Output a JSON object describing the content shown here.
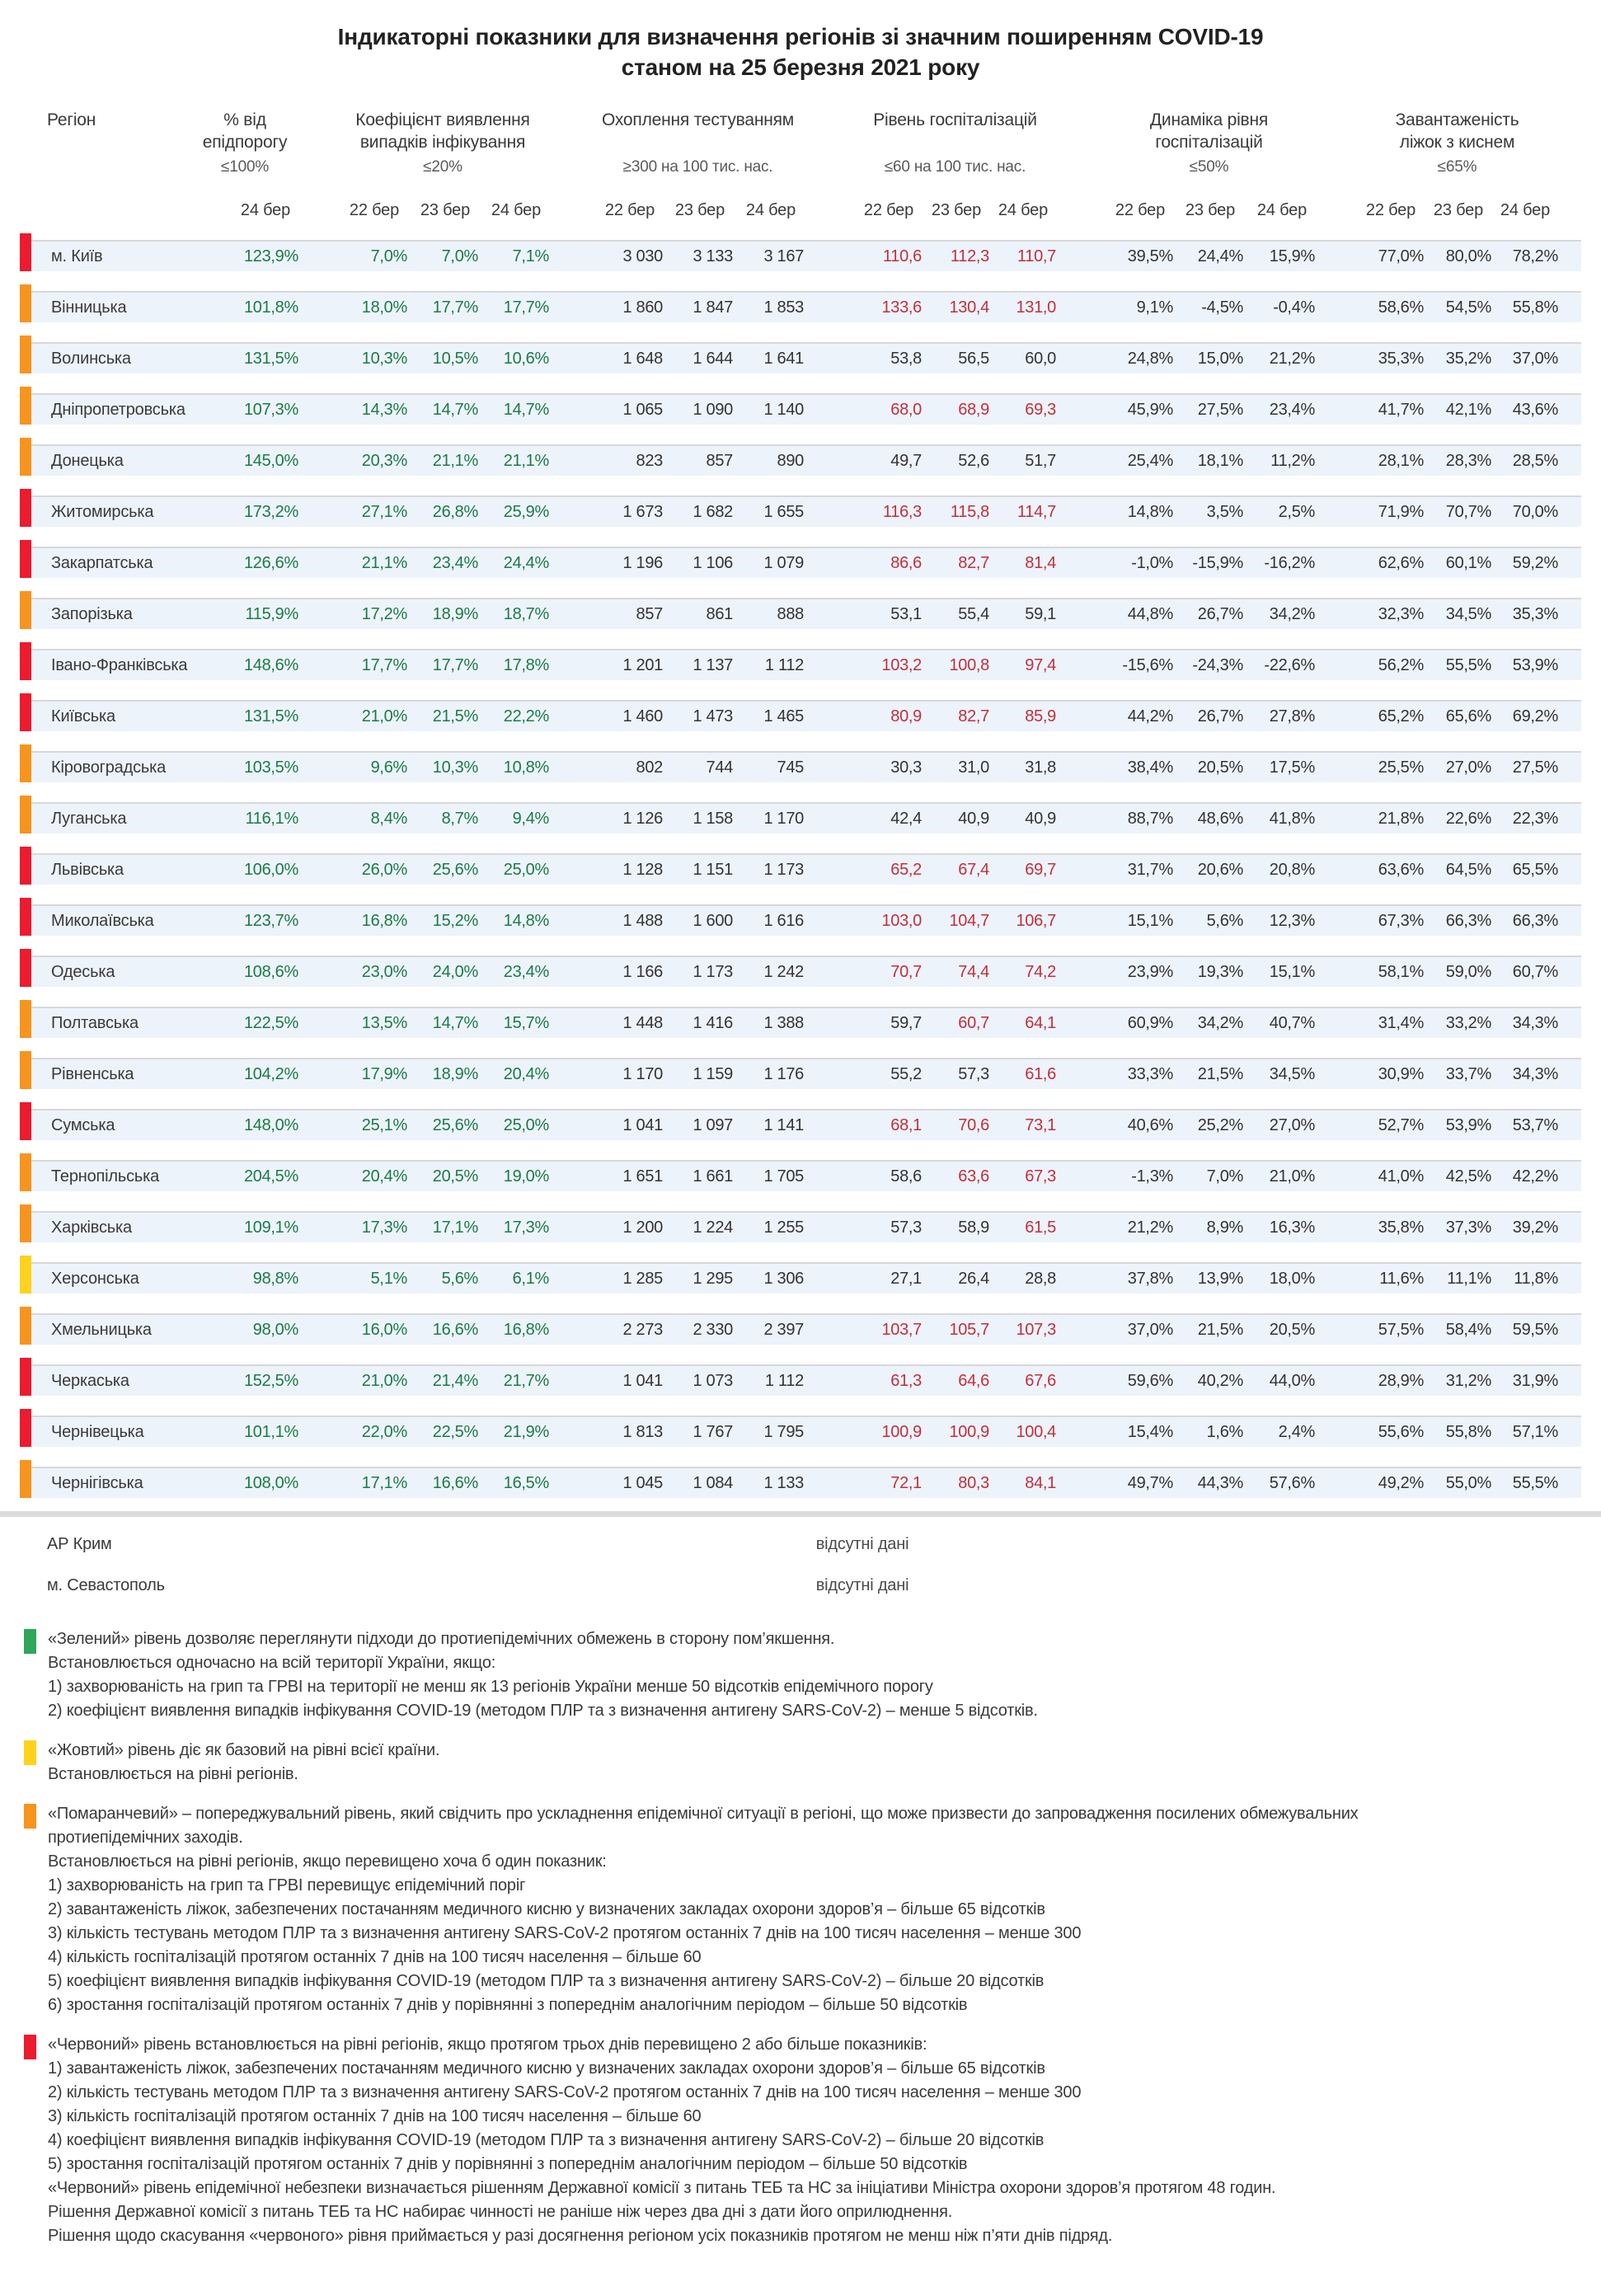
{
  "title": {
    "line1": "Індикаторні показники для визначення регіонів зі значним поширенням COVID-19",
    "line2": "станом на 25 березня 2021 року"
  },
  "header": {
    "region_label": "Регіон",
    "groups": [
      {
        "title": "% від\nепідпорогу",
        "threshold": "≤100%",
        "dates": [
          "24 бер"
        ]
      },
      {
        "title": "Коефіцієнт виявлення\nвипадків інфікування",
        "threshold": "≤20%",
        "dates": [
          "22 бер",
          "23 бер",
          "24 бер"
        ]
      },
      {
        "title": "Охоплення тестуванням",
        "threshold": "≥300 на 100 тис. нас.",
        "dates": [
          "22 бер",
          "23 бер",
          "24 бер"
        ]
      },
      {
        "title": "Рівень госпіталізацій",
        "threshold": "≤60 на 100 тис. нас.",
        "dates": [
          "22 бер",
          "23 бер",
          "24 бер"
        ]
      },
      {
        "title": "Динаміка рівня\nгоспіталізацій",
        "threshold": "≤50%",
        "dates": [
          "22 бер",
          "23 бер",
          "24 бер"
        ]
      },
      {
        "title": "Завантаженість\nліжок з киснем",
        "threshold": "≤65%",
        "dates": [
          "22 бер",
          "23 бер",
          "24 бер"
        ]
      }
    ]
  },
  "rows": [
    {
      "region": "м. Київ",
      "level": "red",
      "pct": "123,9%",
      "coef": [
        "7,0%",
        "7,0%",
        "7,1%"
      ],
      "test": [
        "3 030",
        "3 133",
        "3 167"
      ],
      "hosp": [
        "110,6",
        "112,3",
        "110,7"
      ],
      "hosp_alert": [
        true,
        true,
        true
      ],
      "dyn": [
        "39,5%",
        "24,4%",
        "15,9%"
      ],
      "bed": [
        "77,0%",
        "80,0%",
        "78,2%"
      ]
    },
    {
      "region": "Вінницька",
      "level": "orange",
      "pct": "101,8%",
      "coef": [
        "18,0%",
        "17,7%",
        "17,7%"
      ],
      "test": [
        "1 860",
        "1 847",
        "1 853"
      ],
      "hosp": [
        "133,6",
        "130,4",
        "131,0"
      ],
      "hosp_alert": [
        true,
        true,
        true
      ],
      "dyn": [
        "9,1%",
        "-4,5%",
        "-0,4%"
      ],
      "bed": [
        "58,6%",
        "54,5%",
        "55,8%"
      ]
    },
    {
      "region": "Волинська",
      "level": "orange",
      "pct": "131,5%",
      "coef": [
        "10,3%",
        "10,5%",
        "10,6%"
      ],
      "test": [
        "1 648",
        "1 644",
        "1 641"
      ],
      "hosp": [
        "53,8",
        "56,5",
        "60,0"
      ],
      "hosp_alert": [
        false,
        false,
        false
      ],
      "dyn": [
        "24,8%",
        "15,0%",
        "21,2%"
      ],
      "bed": [
        "35,3%",
        "35,2%",
        "37,0%"
      ]
    },
    {
      "region": "Дніпропетровська",
      "level": "orange",
      "pct": "107,3%",
      "coef": [
        "14,3%",
        "14,7%",
        "14,7%"
      ],
      "test": [
        "1 065",
        "1 090",
        "1 140"
      ],
      "hosp": [
        "68,0",
        "68,9",
        "69,3"
      ],
      "hosp_alert": [
        true,
        true,
        true
      ],
      "dyn": [
        "45,9%",
        "27,5%",
        "23,4%"
      ],
      "bed": [
        "41,7%",
        "42,1%",
        "43,6%"
      ]
    },
    {
      "region": "Донецька",
      "level": "orange",
      "pct": "145,0%",
      "coef": [
        "20,3%",
        "21,1%",
        "21,1%"
      ],
      "test": [
        "823",
        "857",
        "890"
      ],
      "hosp": [
        "49,7",
        "52,6",
        "51,7"
      ],
      "hosp_alert": [
        false,
        false,
        false
      ],
      "dyn": [
        "25,4%",
        "18,1%",
        "11,2%"
      ],
      "bed": [
        "28,1%",
        "28,3%",
        "28,5%"
      ]
    },
    {
      "region": "Житомирська",
      "level": "red",
      "pct": "173,2%",
      "coef": [
        "27,1%",
        "26,8%",
        "25,9%"
      ],
      "test": [
        "1 673",
        "1 682",
        "1 655"
      ],
      "hosp": [
        "116,3",
        "115,8",
        "114,7"
      ],
      "hosp_alert": [
        true,
        true,
        true
      ],
      "dyn": [
        "14,8%",
        "3,5%",
        "2,5%"
      ],
      "bed": [
        "71,9%",
        "70,7%",
        "70,0%"
      ]
    },
    {
      "region": "Закарпатська",
      "level": "red",
      "pct": "126,6%",
      "coef": [
        "21,1%",
        "23,4%",
        "24,4%"
      ],
      "test": [
        "1 196",
        "1 106",
        "1 079"
      ],
      "hosp": [
        "86,6",
        "82,7",
        "81,4"
      ],
      "hosp_alert": [
        true,
        true,
        true
      ],
      "dyn": [
        "-1,0%",
        "-15,9%",
        "-16,2%"
      ],
      "bed": [
        "62,6%",
        "60,1%",
        "59,2%"
      ]
    },
    {
      "region": "Запорізька",
      "level": "orange",
      "pct": "115,9%",
      "coef": [
        "17,2%",
        "18,9%",
        "18,7%"
      ],
      "test": [
        "857",
        "861",
        "888"
      ],
      "hosp": [
        "53,1",
        "55,4",
        "59,1"
      ],
      "hosp_alert": [
        false,
        false,
        false
      ],
      "dyn": [
        "44,8%",
        "26,7%",
        "34,2%"
      ],
      "bed": [
        "32,3%",
        "34,5%",
        "35,3%"
      ]
    },
    {
      "region": "Івано-Франківська",
      "level": "red",
      "pct": "148,6%",
      "coef": [
        "17,7%",
        "17,7%",
        "17,8%"
      ],
      "test": [
        "1 201",
        "1 137",
        "1 112"
      ],
      "hosp": [
        "103,2",
        "100,8",
        "97,4"
      ],
      "hosp_alert": [
        true,
        true,
        true
      ],
      "dyn": [
        "-15,6%",
        "-24,3%",
        "-22,6%"
      ],
      "bed": [
        "56,2%",
        "55,5%",
        "53,9%"
      ]
    },
    {
      "region": "Київська",
      "level": "red",
      "pct": "131,5%",
      "coef": [
        "21,0%",
        "21,5%",
        "22,2%"
      ],
      "test": [
        "1 460",
        "1 473",
        "1 465"
      ],
      "hosp": [
        "80,9",
        "82,7",
        "85,9"
      ],
      "hosp_alert": [
        true,
        true,
        true
      ],
      "dyn": [
        "44,2%",
        "26,7%",
        "27,8%"
      ],
      "bed": [
        "65,2%",
        "65,6%",
        "69,2%"
      ]
    },
    {
      "region": "Кіровоградська",
      "level": "orange",
      "pct": "103,5%",
      "coef": [
        "9,6%",
        "10,3%",
        "10,8%"
      ],
      "test": [
        "802",
        "744",
        "745"
      ],
      "hosp": [
        "30,3",
        "31,0",
        "31,8"
      ],
      "hosp_alert": [
        false,
        false,
        false
      ],
      "dyn": [
        "38,4%",
        "20,5%",
        "17,5%"
      ],
      "bed": [
        "25,5%",
        "27,0%",
        "27,5%"
      ]
    },
    {
      "region": "Луганська",
      "level": "orange",
      "pct": "116,1%",
      "coef": [
        "8,4%",
        "8,7%",
        "9,4%"
      ],
      "test": [
        "1 126",
        "1 158",
        "1 170"
      ],
      "hosp": [
        "42,4",
        "40,9",
        "40,9"
      ],
      "hosp_alert": [
        false,
        false,
        false
      ],
      "dyn": [
        "88,7%",
        "48,6%",
        "41,8%"
      ],
      "bed": [
        "21,8%",
        "22,6%",
        "22,3%"
      ]
    },
    {
      "region": "Львівська",
      "level": "red",
      "pct": "106,0%",
      "coef": [
        "26,0%",
        "25,6%",
        "25,0%"
      ],
      "test": [
        "1 128",
        "1 151",
        "1 173"
      ],
      "hosp": [
        "65,2",
        "67,4",
        "69,7"
      ],
      "hosp_alert": [
        true,
        true,
        true
      ],
      "dyn": [
        "31,7%",
        "20,6%",
        "20,8%"
      ],
      "bed": [
        "63,6%",
        "64,5%",
        "65,5%"
      ]
    },
    {
      "region": "Миколаївська",
      "level": "red",
      "pct": "123,7%",
      "coef": [
        "16,8%",
        "15,2%",
        "14,8%"
      ],
      "test": [
        "1 488",
        "1 600",
        "1 616"
      ],
      "hosp": [
        "103,0",
        "104,7",
        "106,7"
      ],
      "hosp_alert": [
        true,
        true,
        true
      ],
      "dyn": [
        "15,1%",
        "5,6%",
        "12,3%"
      ],
      "bed": [
        "67,3%",
        "66,3%",
        "66,3%"
      ]
    },
    {
      "region": "Одеська",
      "level": "red",
      "pct": "108,6%",
      "coef": [
        "23,0%",
        "24,0%",
        "23,4%"
      ],
      "test": [
        "1 166",
        "1 173",
        "1 242"
      ],
      "hosp": [
        "70,7",
        "74,4",
        "74,2"
      ],
      "hosp_alert": [
        true,
        true,
        true
      ],
      "dyn": [
        "23,9%",
        "19,3%",
        "15,1%"
      ],
      "bed": [
        "58,1%",
        "59,0%",
        "60,7%"
      ]
    },
    {
      "region": "Полтавська",
      "level": "orange",
      "pct": "122,5%",
      "coef": [
        "13,5%",
        "14,7%",
        "15,7%"
      ],
      "test": [
        "1 448",
        "1 416",
        "1 388"
      ],
      "hosp": [
        "59,7",
        "60,7",
        "64,1"
      ],
      "hosp_alert": [
        false,
        true,
        true
      ],
      "dyn": [
        "60,9%",
        "34,2%",
        "40,7%"
      ],
      "bed": [
        "31,4%",
        "33,2%",
        "34,3%"
      ]
    },
    {
      "region": "Рівненська",
      "level": "orange",
      "pct": "104,2%",
      "coef": [
        "17,9%",
        "18,9%",
        "20,4%"
      ],
      "test": [
        "1 170",
        "1 159",
        "1 176"
      ],
      "hosp": [
        "55,2",
        "57,3",
        "61,6"
      ],
      "hosp_alert": [
        false,
        false,
        true
      ],
      "dyn": [
        "33,3%",
        "21,5%",
        "34,5%"
      ],
      "bed": [
        "30,9%",
        "33,7%",
        "34,3%"
      ]
    },
    {
      "region": "Сумська",
      "level": "red",
      "pct": "148,0%",
      "coef": [
        "25,1%",
        "25,6%",
        "25,0%"
      ],
      "test": [
        "1 041",
        "1 097",
        "1 141"
      ],
      "hosp": [
        "68,1",
        "70,6",
        "73,1"
      ],
      "hosp_alert": [
        true,
        true,
        true
      ],
      "dyn": [
        "40,6%",
        "25,2%",
        "27,0%"
      ],
      "bed": [
        "52,7%",
        "53,9%",
        "53,7%"
      ]
    },
    {
      "region": "Тернопільська",
      "level": "orange",
      "pct": "204,5%",
      "coef": [
        "20,4%",
        "20,5%",
        "19,0%"
      ],
      "test": [
        "1 651",
        "1 661",
        "1 705"
      ],
      "hosp": [
        "58,6",
        "63,6",
        "67,3"
      ],
      "hosp_alert": [
        false,
        true,
        true
      ],
      "dyn": [
        "-1,3%",
        "7,0%",
        "21,0%"
      ],
      "bed": [
        "41,0%",
        "42,5%",
        "42,2%"
      ]
    },
    {
      "region": "Харківська",
      "level": "orange",
      "pct": "109,1%",
      "coef": [
        "17,3%",
        "17,1%",
        "17,3%"
      ],
      "test": [
        "1 200",
        "1 224",
        "1 255"
      ],
      "hosp": [
        "57,3",
        "58,9",
        "61,5"
      ],
      "hosp_alert": [
        false,
        false,
        true
      ],
      "dyn": [
        "21,2%",
        "8,9%",
        "16,3%"
      ],
      "bed": [
        "35,8%",
        "37,3%",
        "39,2%"
      ]
    },
    {
      "region": "Херсонська",
      "level": "yellow",
      "pct": "98,8%",
      "coef": [
        "5,1%",
        "5,6%",
        "6,1%"
      ],
      "test": [
        "1 285",
        "1 295",
        "1 306"
      ],
      "hosp": [
        "27,1",
        "26,4",
        "28,8"
      ],
      "hosp_alert": [
        false,
        false,
        false
      ],
      "dyn": [
        "37,8%",
        "13,9%",
        "18,0%"
      ],
      "bed": [
        "11,6%",
        "11,1%",
        "11,8%"
      ]
    },
    {
      "region": "Хмельницька",
      "level": "orange",
      "pct": "98,0%",
      "coef": [
        "16,0%",
        "16,6%",
        "16,8%"
      ],
      "test": [
        "2 273",
        "2 330",
        "2 397"
      ],
      "hosp": [
        "103,7",
        "105,7",
        "107,3"
      ],
      "hosp_alert": [
        true,
        true,
        true
      ],
      "dyn": [
        "37,0%",
        "21,5%",
        "20,5%"
      ],
      "bed": [
        "57,5%",
        "58,4%",
        "59,5%"
      ]
    },
    {
      "region": "Черкаська",
      "level": "red",
      "pct": "152,5%",
      "coef": [
        "21,0%",
        "21,4%",
        "21,7%"
      ],
      "test": [
        "1 041",
        "1 073",
        "1 112"
      ],
      "hosp": [
        "61,3",
        "64,6",
        "67,6"
      ],
      "hosp_alert": [
        true,
        true,
        true
      ],
      "dyn": [
        "59,6%",
        "40,2%",
        "44,0%"
      ],
      "bed": [
        "28,9%",
        "31,2%",
        "31,9%"
      ]
    },
    {
      "region": "Чернівецька",
      "level": "red",
      "pct": "101,1%",
      "coef": [
        "22,0%",
        "22,5%",
        "21,9%"
      ],
      "test": [
        "1 813",
        "1 767",
        "1 795"
      ],
      "hosp": [
        "100,9",
        "100,9",
        "100,4"
      ],
      "hosp_alert": [
        true,
        true,
        true
      ],
      "dyn": [
        "15,4%",
        "1,6%",
        "2,4%"
      ],
      "bed": [
        "55,6%",
        "55,8%",
        "57,1%"
      ]
    },
    {
      "region": "Чернігівська",
      "level": "orange",
      "pct": "108,0%",
      "coef": [
        "17,1%",
        "16,6%",
        "16,5%"
      ],
      "test": [
        "1 045",
        "1 084",
        "1 133"
      ],
      "hosp": [
        "72,1",
        "80,3",
        "84,1"
      ],
      "hosp_alert": [
        true,
        true,
        true
      ],
      "dyn": [
        "49,7%",
        "44,3%",
        "57,6%"
      ],
      "bed": [
        "49,2%",
        "55,0%",
        "55,5%"
      ]
    }
  ],
  "no_data_rows": [
    {
      "region": "АР Крим",
      "note": "відсутні дані"
    },
    {
      "region": "м. Севастополь",
      "note": "відсутні дані"
    }
  ],
  "legend": [
    {
      "name": "green",
      "marker_color": "#2EA65C",
      "lines": [
        "«Зелений» рівень дозволяє переглянути підходи до протиепідемічних обмежень в сторону пом’якшення.",
        "Встановлюється одночасно на всій території України, якщо:",
        "1) захворюваність на грип та ГРВІ на території не менш як 13 регіонів України менше 50 відсотків епідемічного порогу",
        "2) коефіцієнт виявлення випадків інфікування COVID-19 (методом ПЛР та з визначення антигену SARS-CoV-2) – менше 5 відсотків."
      ]
    },
    {
      "name": "yellow",
      "marker_color": "#FFD21E",
      "lines": [
        "«Жовтий» рівень діє як базовий на рівні всієї країни.",
        "Встановлюється на рівні регіонів."
      ]
    },
    {
      "name": "orange",
      "marker_color": "#F7941E",
      "lines": [
        "«Помаранчевий» – попереджувальний рівень, який свідчить про ускладнення епідемічної ситуації в регіоні, що може призвести до запровадження посилених обмежувальних",
        "протиепідемічних заходів.",
        "Встановлюється на рівні регіонів, якщо перевищено хоча б один показник:",
        "1) захворюваність на грип та ГРВІ перевищує епідемічний поріг",
        "2) завантаженість ліжок, забезпечених постачанням медичного кисню у визначених закладах охорони здоров’я – більше 65 відсотків",
        "3) кількість тестувань методом ПЛР та з визначення антигену SARS-CoV-2 протягом останніх 7 днів на 100 тисяч населення – менше 300",
        "4) кількість госпіталізацій протягом останніх 7 днів на 100 тисяч населення – більше 60",
        "5) коефіцієнт виявлення випадків інфікування COVID-19 (методом ПЛР та з визначення антигену SARS-CoV-2) – більше 20 відсотків",
        "6) зростання госпіталізацій протягом останніх 7 днів у порівнянні з попереднім аналогічним періодом – більше 50 відсотків"
      ]
    },
    {
      "name": "red",
      "marker_color": "#EC1B2E",
      "lines": [
        "«Червоний» рівень встановлюється на рівні регіонів, якщо протягом трьох днів перевищено 2 або більше показників:",
        "1) завантаженість ліжок, забезпечених постачанням медичного кисню у визначених закладах охорони здоров’я – більше 65 відсотків",
        "2) кількість тестувань методом ПЛР та з визначення антигену SARS-CoV-2 протягом останніх 7 днів на 100 тисяч населення – менше 300",
        "3) кількість госпіталізацій протягом останніх 7 днів на 100 тисяч населення – більше 60",
        "4) коефіцієнт виявлення випадків інфікування COVID-19 (методом ПЛР та з визначення антигену SARS-CoV-2) – більше 20 відсотків",
        "5) зростання госпіталізацій протягом останніх 7 днів у порівнянні з попереднім аналогічним періодом – більше 50 відсотків",
        "«Червоний» рівень епідемічної небезпеки визначається рішенням Державної комісії з питань ТЕБ та НС за ініціативи Міністра охорони здоров’я протягом 48 годин.",
        "Рішення Державної комісії з питань ТЕБ та НС набирає чинності не раніше ніж через два дні з дати його оприлюднення.",
        "Рішення щодо скасування «червоного» рівня приймається у разі досягнення регіоном усіх показників протягом не менш ніж п’яти днів підряд."
      ]
    }
  ],
  "colors": {
    "red_bar": "#EC1B2E",
    "orange_bar": "#F7941E",
    "yellow_bar": "#FFD21E",
    "green_text": "#1B7B46",
    "alert_text": "#C22F3C",
    "band_bg": "#EDF3FA"
  }
}
